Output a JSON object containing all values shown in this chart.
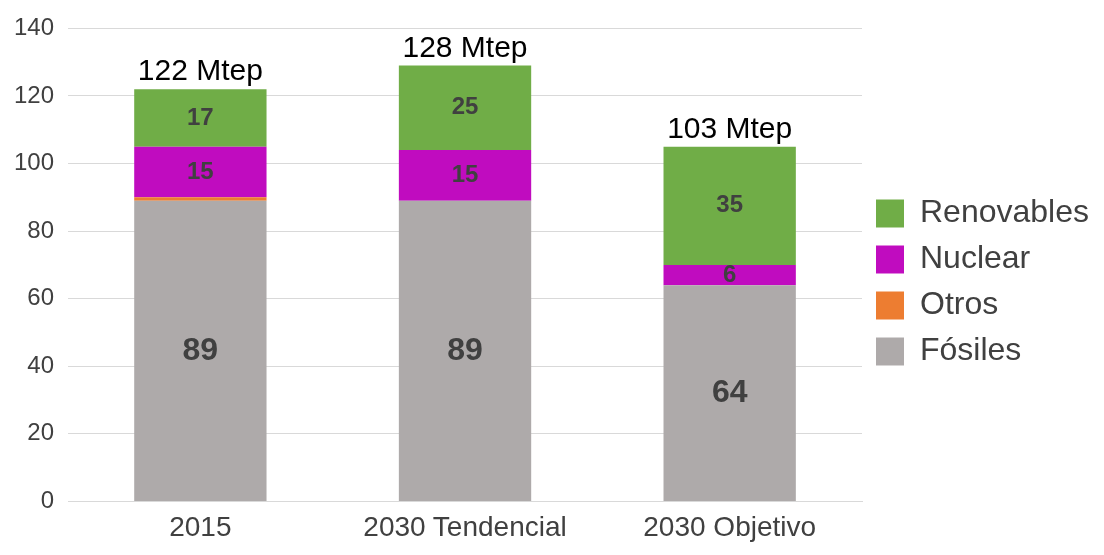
{
  "chart_data": {
    "type": "bar",
    "stacked": true,
    "categories": [
      "2015",
      "2030 Tendencial",
      "2030 Objetivo"
    ],
    "series": [
      {
        "name": "Fósiles",
        "color": "#aeaaaa",
        "values": [
          89,
          89,
          64
        ],
        "value_labels": [
          "89",
          "89",
          "64"
        ]
      },
      {
        "name": "Otros",
        "color": "#ed7d31",
        "values": [
          1,
          0,
          0
        ],
        "value_labels": [
          null,
          null,
          null
        ]
      },
      {
        "name": "Nuclear",
        "color": "#c00cbf",
        "values": [
          15,
          15,
          6
        ],
        "value_labels": [
          "15",
          "15",
          "6"
        ]
      },
      {
        "name": "Renovables",
        "color": "#70ad47",
        "values": [
          17,
          25,
          35
        ],
        "value_labels": [
          "17",
          "25",
          "35"
        ]
      }
    ],
    "totals": [
      "122 Mtep",
      "128 Mtep",
      "103 Mtep"
    ],
    "ylim": [
      0,
      140
    ],
    "yticks": [
      0,
      20,
      40,
      60,
      80,
      100,
      120,
      140
    ],
    "grid": "y",
    "legend": "right"
  }
}
